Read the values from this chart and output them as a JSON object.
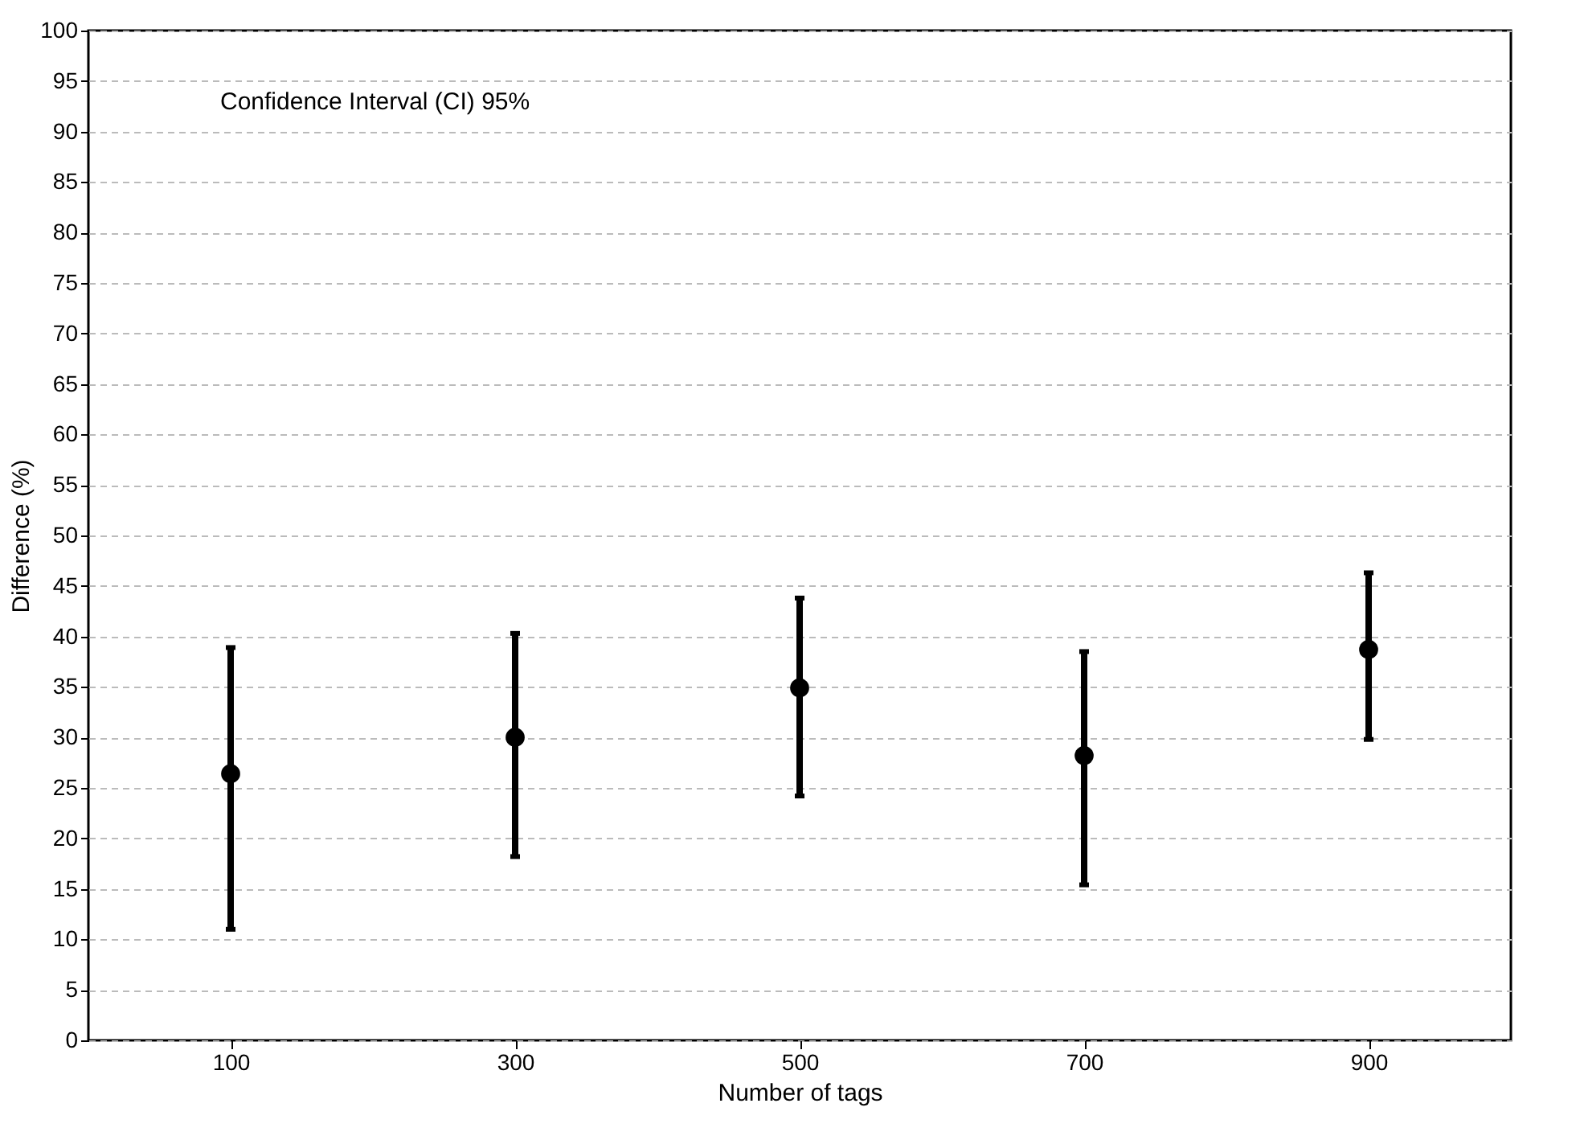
{
  "chart_data": {
    "type": "scatter",
    "xlabel": "Number of tags",
    "ylabel": "Difference (%)",
    "annotations": [
      "Confidence Interval (CI) 95%"
    ],
    "x": [
      100,
      300,
      500,
      700,
      900
    ],
    "values": [
      26.4,
      30,
      34.9,
      28.2,
      38.7
    ],
    "errors": [
      [
        11,
        38.9
      ],
      [
        18.2,
        40.3
      ],
      [
        24.2,
        43.8
      ],
      [
        15.4,
        38.5
      ],
      [
        29.8,
        46.3
      ]
    ],
    "color": "#000000",
    "marker": "circle",
    "xlim": [
      0,
      1000
    ],
    "xticks": [
      100,
      300,
      500,
      700,
      900
    ],
    "ylim": [
      0,
      100
    ],
    "yticks": [
      0,
      5,
      10,
      15,
      20,
      25,
      30,
      35,
      40,
      45,
      50,
      55,
      60,
      65,
      70,
      75,
      80,
      85,
      90,
      95,
      100
    ],
    "grid": "y"
  }
}
